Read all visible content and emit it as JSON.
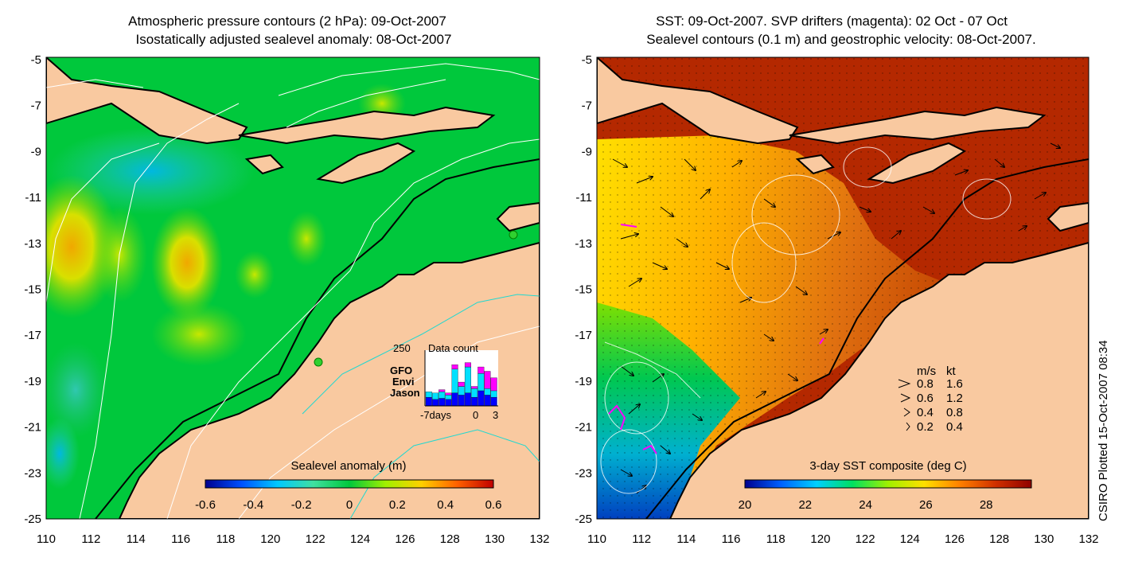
{
  "left_panel": {
    "title_line1": "Atmospheric pressure contours (2 hPa): 09-Oct-2007",
    "title_line2": "Isostatically adjusted sealevel anomaly: 08-Oct-2007",
    "y_ticks": [
      "-5",
      "-7",
      "-9",
      "-11",
      "-13",
      "-15",
      "-17",
      "-19",
      "-21",
      "-23",
      "-25"
    ],
    "x_ticks": [
      "110",
      "112",
      "114",
      "116",
      "118",
      "120",
      "122",
      "124",
      "126",
      "128",
      "130",
      "132"
    ],
    "colorbar": {
      "title": "Sealevel anomaly (m)",
      "labels": [
        "-0.6",
        "-0.4",
        "-0.2",
        "0",
        "0.2",
        "0.4",
        "0.6"
      ],
      "range": [
        -0.6,
        0.6
      ]
    },
    "inset": {
      "title": "Data count",
      "y_max_label": "250",
      "legend": [
        {
          "name": "GFO",
          "color": "#ff00ff"
        },
        {
          "name": "Envi",
          "color": "#00e0ff"
        },
        {
          "name": "Jason",
          "color": "#0000ff"
        }
      ],
      "x_label_left": "-7days",
      "x_label_mid": "0",
      "x_label_right": "3",
      "y_max": 250,
      "jason": [
        40,
        30,
        35,
        30,
        60,
        50,
        60,
        40,
        70,
        50,
        40
      ],
      "envi": [
        25,
        30,
        30,
        20,
        110,
        40,
        120,
        40,
        80,
        30,
        30
      ],
      "gfo": [
        0,
        0,
        10,
        10,
        20,
        20,
        20,
        10,
        30,
        80,
        60
      ]
    }
  },
  "right_panel": {
    "title_line1": "SST: 09-Oct-2007. SVP drifters (magenta): 02 Oct - 07 Oct",
    "title_line2": "Sealevel contours (0.1 m) and geostrophic velocity: 08-Oct-2007.",
    "y_ticks": [
      "-5",
      "-7",
      "-9",
      "-11",
      "-13",
      "-15",
      "-17",
      "-19",
      "-21",
      "-23",
      "-25"
    ],
    "x_ticks": [
      "110",
      "112",
      "114",
      "116",
      "118",
      "120",
      "122",
      "124",
      "126",
      "128",
      "130",
      "132"
    ],
    "colorbar": {
      "title": "3-day SST composite (deg C)",
      "labels": [
        "20",
        "22",
        "24",
        "26",
        "28"
      ],
      "range": [
        20,
        29.5
      ]
    },
    "velocity_legend": {
      "header_ms": "m/s",
      "header_kt": "kt",
      "rows": [
        {
          "ms": "0.8",
          "kt": "1.6"
        },
        {
          "ms": "0.6",
          "kt": "1.2"
        },
        {
          "ms": "0.4",
          "kt": "0.8"
        },
        {
          "ms": "0.2",
          "kt": "0.4"
        }
      ]
    }
  },
  "credit": "CSIRO Plotted 15-Oct-2007 08:34",
  "colors": {
    "land": "#f9c9a0",
    "ocean_sla": "#00c83c",
    "ocean_sst": "#b42800",
    "sla_scale": [
      "#00008f",
      "#0050ff",
      "#00c8ff",
      "#40e0a0",
      "#00c83c",
      "#a0f000",
      "#ffd000",
      "#ff6000",
      "#c00000"
    ],
    "sst_scale": [
      "#00008f",
      "#0060ff",
      "#00d0ff",
      "#00e060",
      "#a0f000",
      "#ffe000",
      "#ff8000",
      "#d03000",
      "#900000"
    ]
  }
}
